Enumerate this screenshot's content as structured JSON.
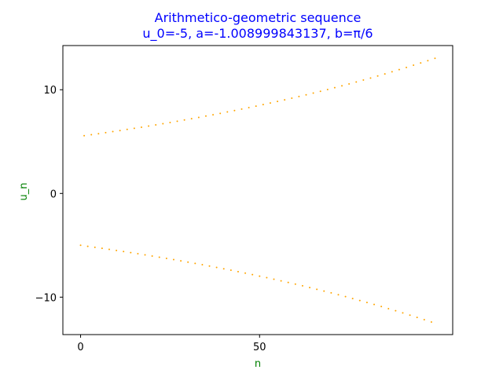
{
  "chart_data": {
    "type": "scatter",
    "title": "Arithmetico-geometric sequence",
    "subtitle": "u_0=-5, a=-1.008999843137, b=π/6",
    "xlabel": "n",
    "ylabel": "u_n",
    "xlim": [
      -4.95,
      103.95
    ],
    "ylim": [
      -13.61,
      14.26
    ],
    "x_ticks": [
      0,
      50
    ],
    "y_ticks": [
      -10,
      0,
      10
    ],
    "grid": false,
    "colors": {
      "title": "#0000ff",
      "axis_labels": "#008000",
      "points": "#ffa500"
    },
    "sequence": {
      "u0": -5,
      "a": -1.008999843137,
      "b": 0.5235987755982988,
      "n_start": 0,
      "n_end": 99
    }
  }
}
